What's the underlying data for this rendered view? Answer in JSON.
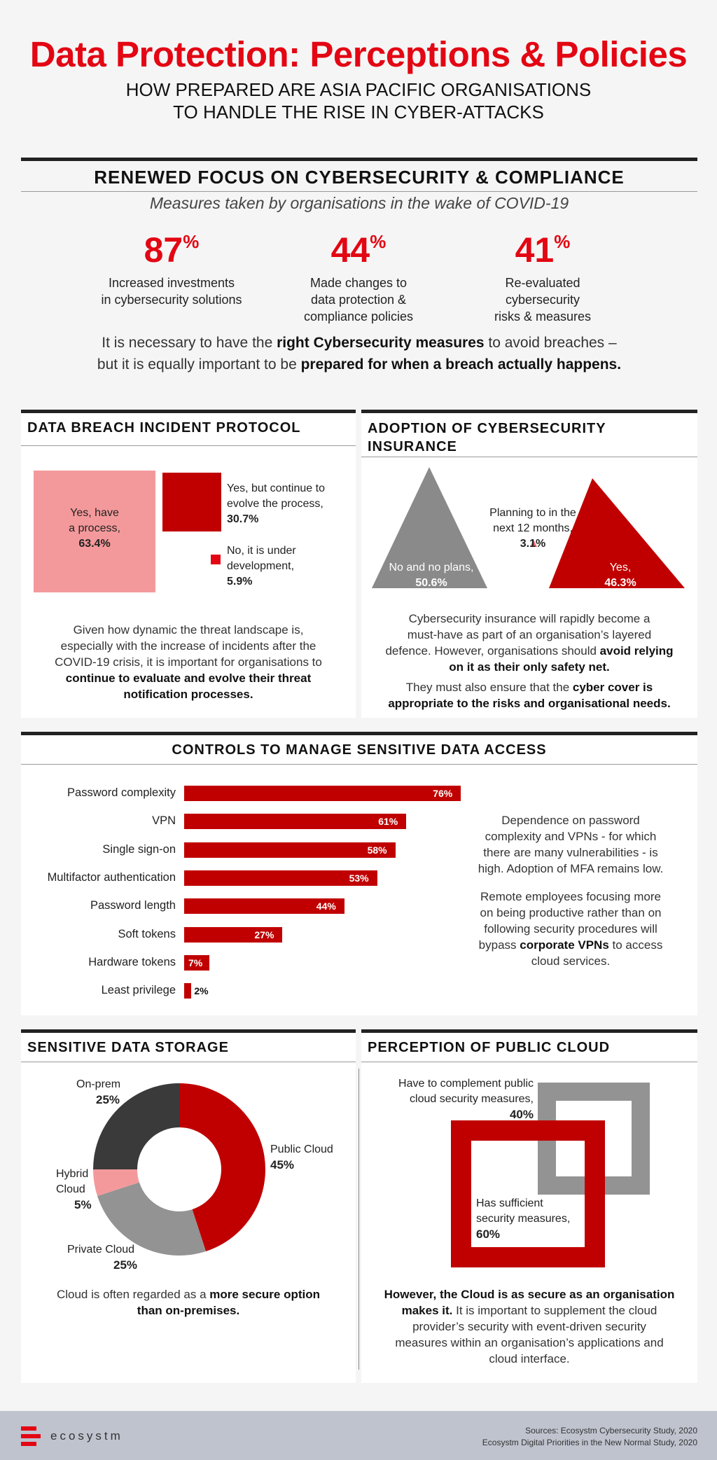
{
  "header": {
    "title": "Data Protection: Perceptions & Policies",
    "subtitle_line1": "HOW PREPARED ARE ASIA PACIFIC ORGANISATIONS",
    "subtitle_line2": "TO HANDLE THE RISE IN CYBER-ATTACKS"
  },
  "renewed": {
    "heading": "RENEWED FOCUS ON CYBERSECURITY & COMPLIANCE",
    "subheading": "Measures taken by organisations in the wake of COVID-19",
    "stats": [
      {
        "value": "87",
        "unit": "%",
        "line1": "Increased investments",
        "line2": "in cybersecurity solutions",
        "line3": ""
      },
      {
        "value": "44",
        "unit": "%",
        "line1": "Made changes to",
        "line2": "data protection &",
        "line3": "compliance policies"
      },
      {
        "value": "41",
        "unit": "%",
        "line1": "Re-evaluated",
        "line2": "cybersecurity",
        "line3": "risks & measures"
      }
    ],
    "note_a": "It is necessary to have the ",
    "note_b": "right Cybersecurity measures",
    "note_c": " to avoid breaches –",
    "note_d": "but it is equally important to be ",
    "note_e": "prepared for when a breach actually happens."
  },
  "breach": {
    "heading": "DATA BREACH INCIDENT PROTOCOL",
    "chart_data": {
      "type": "treemap",
      "items": [
        {
          "label_line1": "Yes, have",
          "label_line2": "a process,",
          "value": 63.4,
          "value_text": "63.4%",
          "color": "#f4999b"
        },
        {
          "label_line1": "Yes, but continue to",
          "label_line2": "evolve the process,",
          "value": 30.7,
          "value_text": "30.7%",
          "color": "#c00000"
        },
        {
          "label_line1": "No, it is under",
          "label_line2": "development,",
          "value": 5.9,
          "value_text": "5.9%",
          "color": "#e30613"
        }
      ]
    },
    "text_1": "Given how dynamic the threat landscape is,",
    "text_2": "especially with the increase of incidents after the",
    "text_3": "COVID-19 crisis, it is important for organisations to",
    "text_4": "continue to evaluate and evolve their threat",
    "text_5": "notification processes."
  },
  "insurance": {
    "heading_1": "ADOPTION OF CYBERSECURITY",
    "heading_2": "INSURANCE",
    "chart_data": {
      "type": "proportional-triangles",
      "items": [
        {
          "label": "No and no plans,",
          "value": 50.6,
          "value_text": "50.6%",
          "color": "#8a8a8a"
        },
        {
          "label_line1": "Planning to in the",
          "label_line2": "next 12 months,",
          "value": 3.1,
          "value_text": "3.1%",
          "color": "#f06a6a"
        },
        {
          "label": "Yes,",
          "value": 46.3,
          "value_text": "46.3%",
          "color": "#c00000"
        }
      ]
    },
    "text_1": "Cybersecurity insurance will rapidly become a",
    "text_2": "must-have as part of an organisation’s layered",
    "text_3a": "defence. However, organisations should ",
    "text_3b": "avoid relying",
    "text_4": "on it as their only safety net.",
    "text_5a": "They must also ensure that the ",
    "text_5b": "cyber cover is",
    "text_6": "appropriate to the risks and organisational needs."
  },
  "controls": {
    "heading": "CONTROLS TO MANAGE SENSITIVE DATA ACCESS",
    "chart_data": {
      "type": "bar",
      "orientation": "horizontal",
      "categories": [
        "Password complexity",
        "VPN",
        "Single sign-on",
        "Multifactor authentication",
        "Password length",
        "Soft tokens",
        "Hardware tokens",
        "Least privilege"
      ],
      "values": [
        76,
        61,
        58,
        53,
        44,
        27,
        7,
        2
      ],
      "value_labels": [
        "76%",
        "61%",
        "58%",
        "53%",
        "44%",
        "27%",
        "7%",
        "2%"
      ],
      "color": "#c00000"
    },
    "note1_1": "Dependence on password",
    "note1_2": "complexity and VPNs - for which",
    "note1_3": "there are many vulnerabilities - is",
    "note1_4": "high. Adoption of MFA remains low.",
    "note2_1": "Remote employees focusing more",
    "note2_2": "on being productive rather than on",
    "note2_3": "following security procedures will",
    "note2_4a": "bypass ",
    "note2_4b": "corporate VPNs",
    "note2_4c": " to access",
    "note2_5": "cloud services."
  },
  "storage": {
    "heading": "SENSITIVE DATA STORAGE",
    "chart_data": {
      "type": "pie",
      "donut": true,
      "slices": [
        {
          "label": "Public Cloud",
          "value": 45,
          "value_text": "45%",
          "color": "#c00000"
        },
        {
          "label": "Private Cloud",
          "value": 25,
          "value_text": "25%",
          "color": "#939393"
        },
        {
          "label_line1": "Hybrid",
          "label_line2": "Cloud",
          "value": 5,
          "value_text": "5%",
          "color": "#f4999b"
        },
        {
          "label": "On-prem",
          "value": 25,
          "value_text": "25%",
          "color": "#3a3a3a"
        }
      ]
    },
    "text_1a": "Cloud is often regarded as a ",
    "text_1b": "more secure option",
    "text_2": "than on-premises."
  },
  "cloud": {
    "heading": "PERCEPTION OF PUBLIC CLOUD",
    "chart_data": {
      "type": "proportional-squares",
      "items": [
        {
          "label_line1": "Have to complement public",
          "label_line2": "cloud security measures,",
          "value": 40,
          "value_text": "40%",
          "color": "#939393"
        },
        {
          "label_line1": "Has sufficient",
          "label_line2": "security measures,",
          "value": 60,
          "value_text": "60%",
          "color": "#c00000"
        }
      ]
    },
    "text_1": "However, the Cloud is as secure as an organisation",
    "text_2a": "makes it.",
    "text_2b": " It is important to supplement the cloud",
    "text_3": "provider’s security with event-driven security",
    "text_4": "measures within an organisation’s applications and",
    "text_5": "cloud interface."
  },
  "footer": {
    "brand": "ecosystm",
    "source_1": "Sources: Ecosystm Cybersecurity Study, 2020",
    "source_2": "Ecosystm Digital Priorities in the New Normal Study, 2020"
  }
}
